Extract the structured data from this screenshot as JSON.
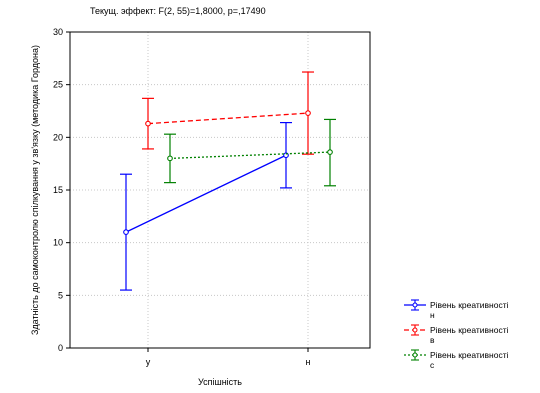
{
  "chart_data": {
    "type": "line",
    "title": "Текущ. эффект: F(2, 55)=1,8000, p=,17490",
    "xlabel": "Успішність",
    "ylabel": "Здатність до самоконтролю спілкування у зв'язку (методика Гордона)",
    "categories": [
      "у",
      "н"
    ],
    "ylim": [
      0,
      30
    ],
    "yticks": [
      0,
      5,
      10,
      15,
      20,
      25,
      30
    ],
    "grid": true,
    "legend_position": "right",
    "series": [
      {
        "name": "Рівень креативності н",
        "color": "#0000ff",
        "line_style": "solid",
        "values": [
          11.0,
          18.3
        ],
        "lower": [
          5.5,
          15.2
        ],
        "upper": [
          16.5,
          21.4
        ]
      },
      {
        "name": "Рівень креативності в",
        "color": "#ff0000",
        "line_style": "dashed",
        "values": [
          21.3,
          22.3
        ],
        "lower": [
          18.9,
          18.4
        ],
        "upper": [
          23.7,
          26.2
        ]
      },
      {
        "name": "Рівень креативності с",
        "color": "#008000",
        "line_style": "dotted",
        "values": [
          18.0,
          18.6
        ],
        "lower": [
          15.7,
          15.4
        ],
        "upper": [
          20.3,
          21.7
        ]
      }
    ]
  }
}
